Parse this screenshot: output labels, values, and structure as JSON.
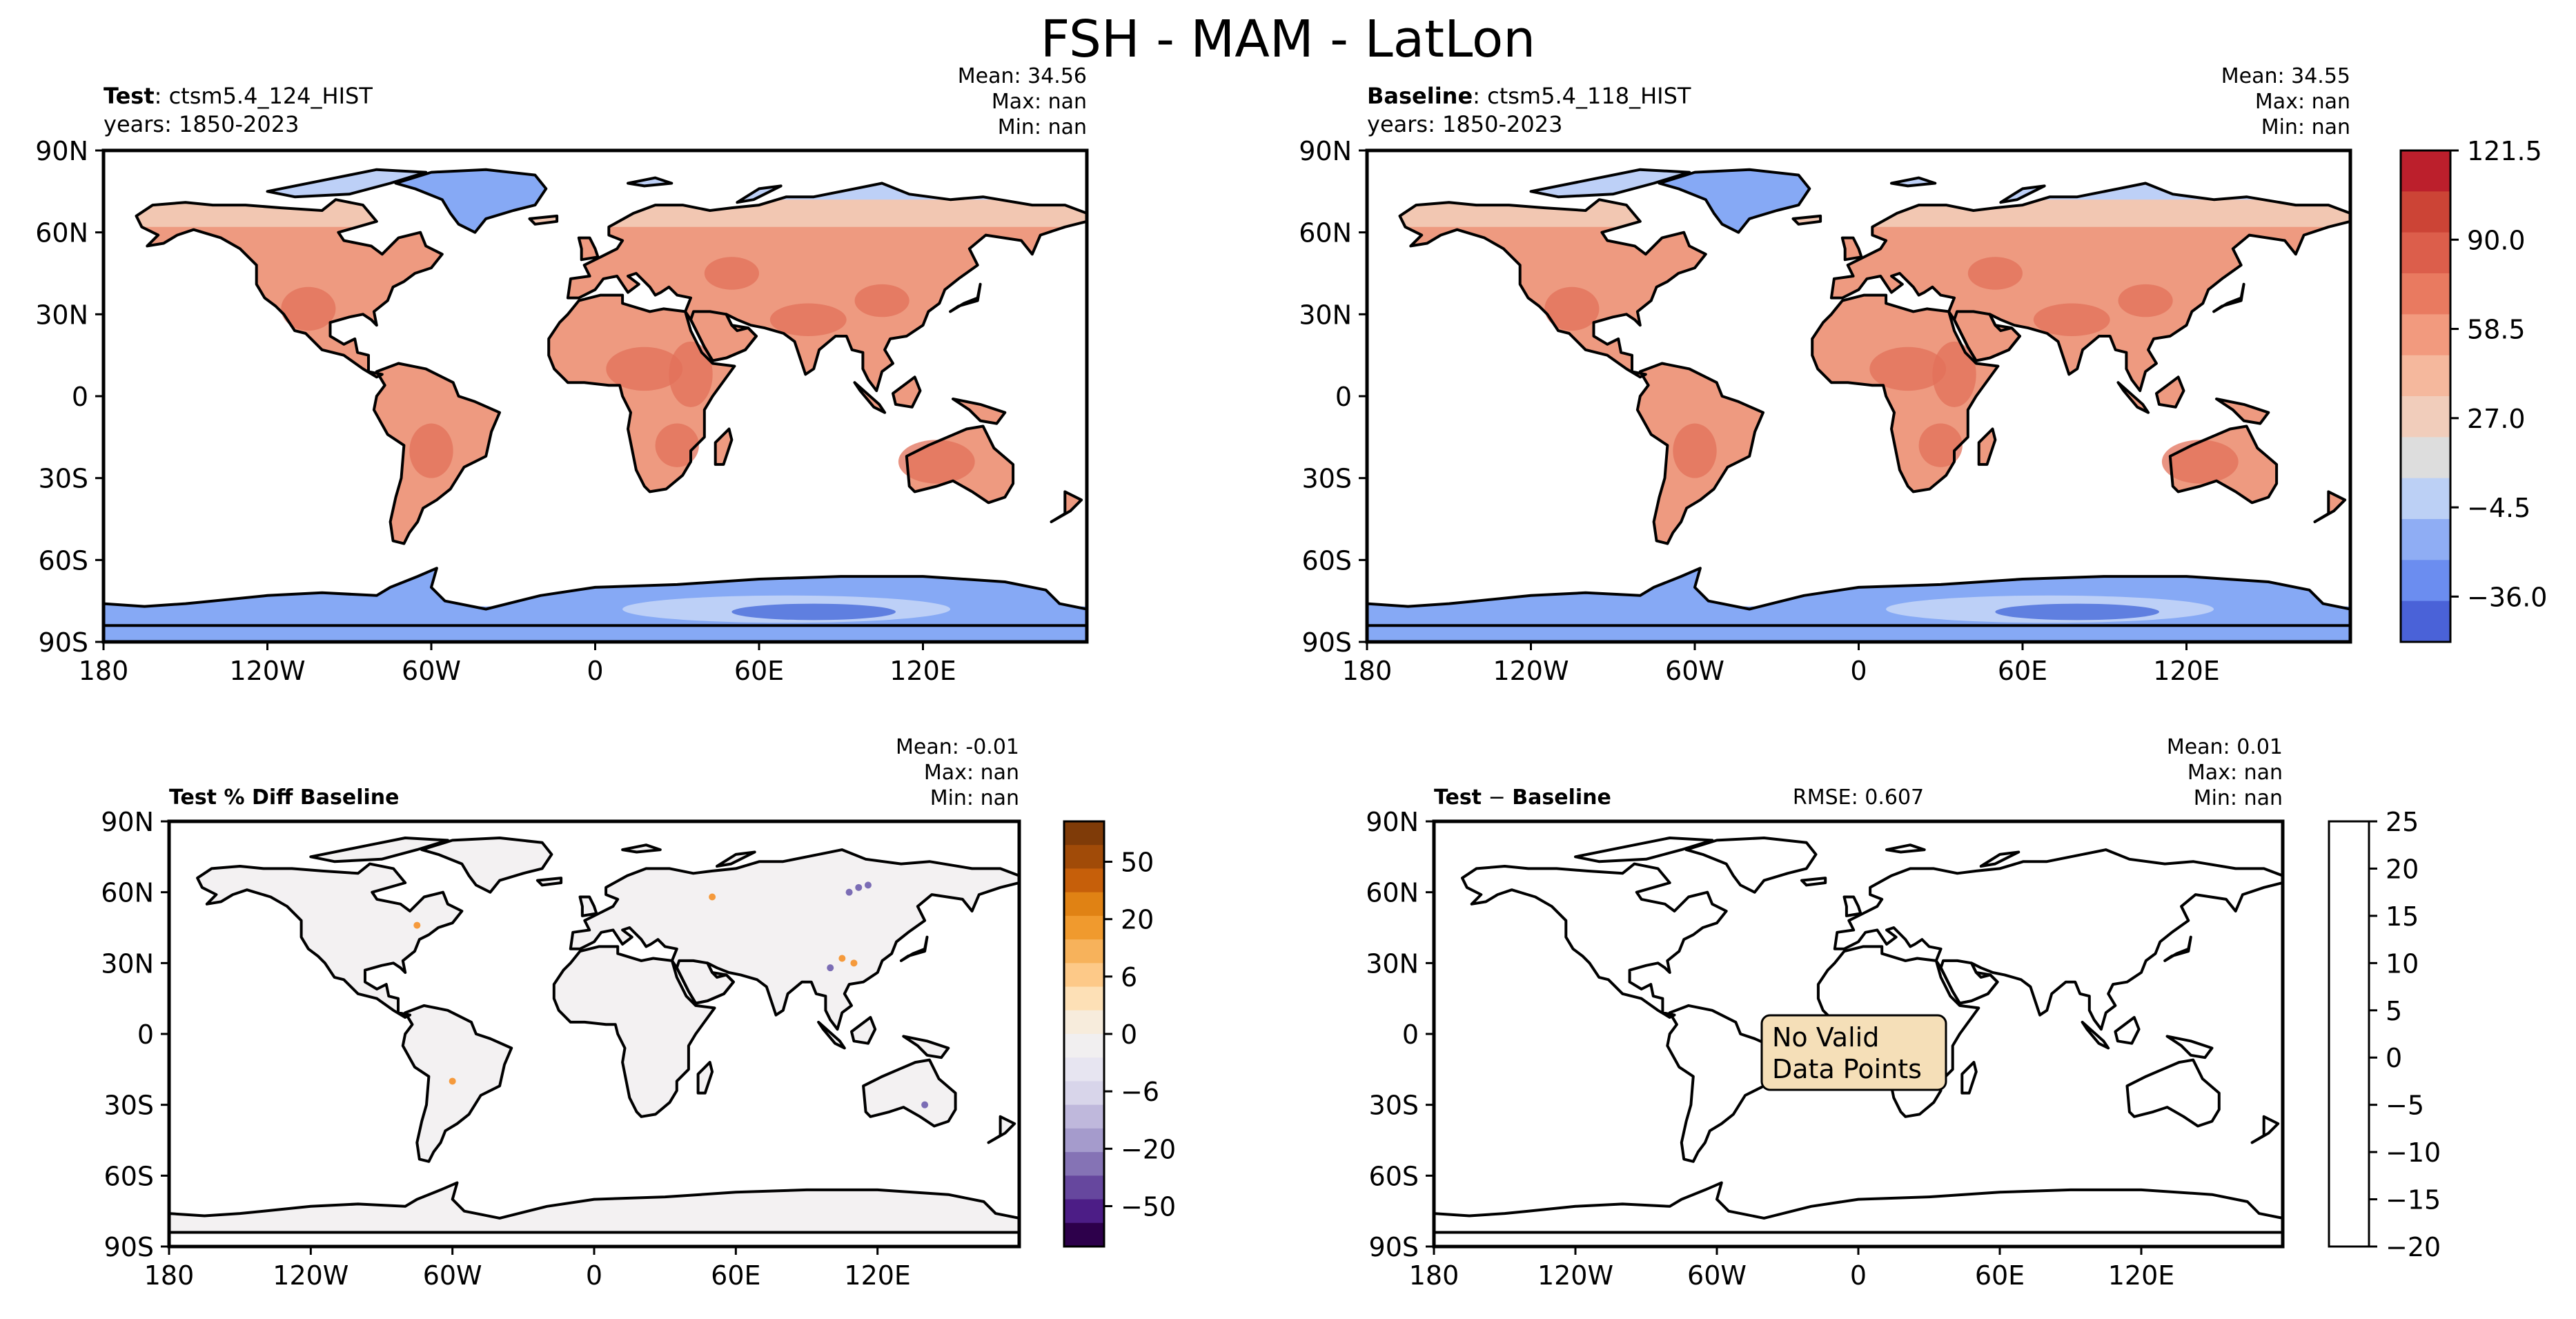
{
  "figure": {
    "title": "FSH - MAM - LatLon"
  },
  "chart_data": [
    {
      "type": "heatmap",
      "name": "test",
      "title_bold": "Test",
      "title_rest": ": ctsm5.4_124_HIST",
      "years": "years: 1850-2023",
      "stats": {
        "mean": "Mean: 34.56",
        "max": "Max:   nan",
        "min": "Min:   nan"
      },
      "x_ticks": [
        "180",
        "120W",
        "60W",
        "0",
        "60E",
        "120E"
      ],
      "y_ticks": [
        "90N",
        "60N",
        "30N",
        "0",
        "30S",
        "60S",
        "90S"
      ],
      "xlim": [
        -180,
        180
      ],
      "ylim": [
        -90,
        90
      ]
    },
    {
      "type": "heatmap",
      "name": "baseline",
      "title_bold": "Baseline",
      "title_rest": ": ctsm5.4_118_HIST",
      "years": "years: 1850-2023",
      "stats": {
        "mean": "Mean: 34.55",
        "max": "Max:   nan",
        "min": "Min:   nan"
      },
      "x_ticks": [
        "180",
        "120W",
        "60W",
        "0",
        "60E",
        "120E"
      ],
      "y_ticks": [
        "90N",
        "60N",
        "30N",
        "0",
        "30S",
        "60S",
        "90S"
      ],
      "xlim": [
        -180,
        180
      ],
      "ylim": [
        -90,
        90
      ],
      "colorbar": {
        "range": [
          -52,
          121.5
        ],
        "ticks": [
          "121.5",
          "90.0",
          "58.5",
          "27.0",
          "−4.5",
          "−36.0"
        ]
      }
    },
    {
      "type": "heatmap",
      "name": "pct-diff",
      "title_bold": "Test % Diff Baseline",
      "stats": {
        "mean": "Mean: -0.01",
        "max": "Max:   nan",
        "min": "Min:   nan"
      },
      "x_ticks": [
        "180",
        "120W",
        "60W",
        "0",
        "60E",
        "120E"
      ],
      "y_ticks": [
        "90N",
        "60N",
        "30N",
        "0",
        "30S",
        "60S",
        "90S"
      ],
      "xlim": [
        -180,
        180
      ],
      "ylim": [
        -90,
        90
      ],
      "colorbar": {
        "ticks": [
          "50",
          "20",
          "6",
          "0",
          "−6",
          "−20",
          "−50"
        ]
      }
    },
    {
      "type": "heatmap",
      "name": "abs-diff",
      "title_left": "Test",
      "title_minus": " − ",
      "title_right": "Baseline",
      "rmse": "RMSE: 0.607",
      "stats": {
        "mean": "Mean:  0.01",
        "max": "Max:   nan",
        "min": "Min:   nan"
      },
      "x_ticks": [
        "180",
        "120W",
        "60W",
        "0",
        "60E",
        "120E"
      ],
      "y_ticks": [
        "90N",
        "60N",
        "30N",
        "0",
        "30S",
        "60S",
        "90S"
      ],
      "xlim": [
        -180,
        180
      ],
      "ylim": [
        -90,
        90
      ],
      "message": [
        "No Valid",
        "Data Points"
      ],
      "colorbar": {
        "ticks": [
          "25",
          "20",
          "15",
          "10",
          "5",
          "0",
          "−5",
          "−10",
          "−15",
          "−20"
        ]
      }
    }
  ],
  "colors": {
    "ocean": "#ffffff",
    "land_warm": "#ee9a80",
    "land_hot": "#e2705a",
    "land_pale": "#f2c7b2",
    "ice": "#86a9f5",
    "ice_light": "#bdd0f7",
    "ice_deep": "#5f7fe0",
    "diff_land": "#f3f1f2",
    "diff_pos": "#f59a3c",
    "diff_neg": "#7b6db5",
    "msg_face": "#f5dfb8"
  }
}
